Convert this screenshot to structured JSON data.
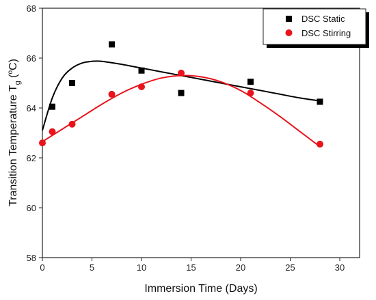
{
  "chart_data": {
    "type": "scatter",
    "title": "",
    "xlabel": "Immersion Time (Days)",
    "ylabel_main": "Transition Temperature T",
    "ylabel_sub": "g",
    "ylabel_unit_open": " (",
    "ylabel_unit_deg": "o",
    "ylabel_unit_close": "C)",
    "xlim": [
      0,
      32
    ],
    "ylim": [
      58,
      68
    ],
    "xticks": [
      0,
      5,
      10,
      15,
      20,
      25,
      30
    ],
    "yticks": [
      58,
      60,
      62,
      64,
      66,
      68
    ],
    "xtick_labels": [
      "0",
      "5",
      "10",
      "15",
      "20",
      "25",
      "30"
    ],
    "ytick_labels": [
      "58",
      "60",
      "62",
      "64",
      "66",
      "68"
    ],
    "grid": false,
    "legend_position": "top-right",
    "series": [
      {
        "name": "DSC Static",
        "marker": "square",
        "color": "#000000",
        "x": [
          1,
          3,
          7,
          10,
          14,
          21,
          28
        ],
        "y": [
          64.05,
          65.0,
          66.55,
          65.5,
          64.6,
          65.05,
          64.25
        ],
        "fit_x": [
          0,
          1,
          2,
          3,
          4,
          5,
          6,
          8,
          10,
          12,
          14,
          16,
          18,
          20,
          22,
          24,
          26,
          28
        ],
        "fit_y": [
          63.1,
          64.4,
          65.2,
          65.6,
          65.8,
          65.87,
          65.87,
          65.75,
          65.6,
          65.45,
          65.3,
          65.15,
          65.0,
          64.85,
          64.7,
          64.55,
          64.4,
          64.28
        ]
      },
      {
        "name": "DSC Stirring",
        "marker": "circle",
        "color": "#e8131b",
        "x": [
          0,
          1,
          3,
          7,
          10,
          14,
          21,
          28
        ],
        "y": [
          62.6,
          63.05,
          63.35,
          64.55,
          64.85,
          65.4,
          64.6,
          62.55
        ],
        "fit_x": [
          0,
          2,
          4,
          6,
          8,
          10,
          12,
          14,
          16,
          18,
          20,
          22,
          24,
          26,
          28
        ],
        "fit_y": [
          62.65,
          63.15,
          63.65,
          64.15,
          64.6,
          64.95,
          65.2,
          65.3,
          65.25,
          65.05,
          64.7,
          64.2,
          63.65,
          63.05,
          62.45
        ]
      }
    ]
  }
}
